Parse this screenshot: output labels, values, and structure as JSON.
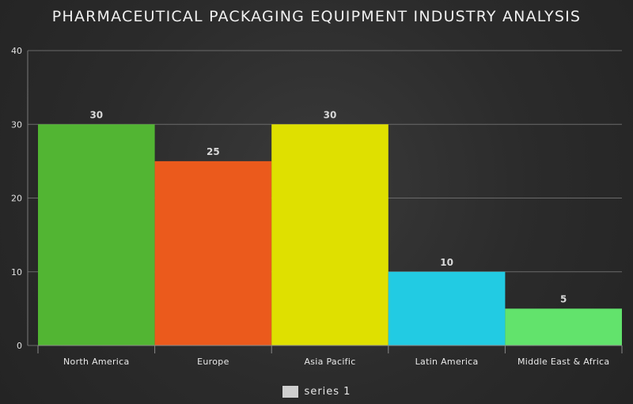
{
  "chart_data": {
    "type": "bar",
    "title": "PHARMACEUTICAL PACKAGING EQUIPMENT INDUSTRY ANALYSIS",
    "categories": [
      "North America",
      "Europe",
      "Asia Pacific",
      "Latin America",
      "Middle East & Africa"
    ],
    "series": [
      {
        "name": "series 1",
        "values": [
          30,
          25,
          30,
          10,
          5
        ]
      }
    ],
    "bar_colors": [
      "#52b533",
      "#eb5a1c",
      "#dfe000",
      "#22cbe3",
      "#62e36c"
    ],
    "ylim": [
      0,
      40
    ],
    "yticks": [
      0,
      10,
      20,
      30,
      40
    ],
    "grid": true,
    "legend_position": "bottom"
  },
  "legend": {
    "swatch_color": "#cfcfcf"
  }
}
